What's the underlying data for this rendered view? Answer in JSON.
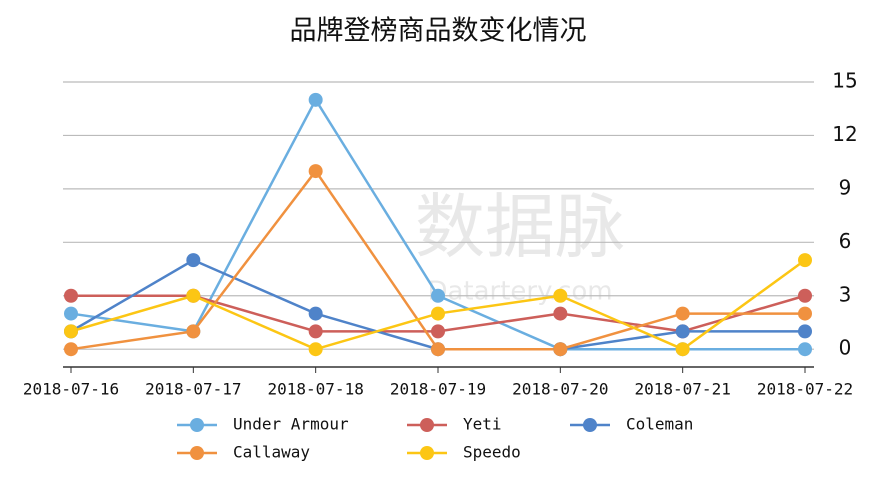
{
  "chart_data": {
    "type": "line",
    "title": "品牌登榜商品数变化情况",
    "watermark": [
      "数据脉",
      "Datartery.com"
    ],
    "categories": [
      "2018-07-16",
      "2018-07-17",
      "2018-07-18",
      "2018-07-19",
      "2018-07-20",
      "2018-07-21",
      "2018-07-22"
    ],
    "series": [
      {
        "name": "Under Armour",
        "color": "#6aaee0",
        "values": [
          2,
          1,
          14,
          3,
          0,
          0,
          0
        ]
      },
      {
        "name": "Yeti",
        "color": "#cd5f5a",
        "values": [
          3,
          3,
          1,
          1,
          2,
          1,
          3
        ]
      },
      {
        "name": "Coleman",
        "color": "#4f83c9",
        "values": [
          1,
          5,
          2,
          0,
          0,
          1,
          1
        ]
      },
      {
        "name": "Callaway",
        "color": "#f0913f",
        "values": [
          0,
          1,
          10,
          0,
          0,
          2,
          2
        ]
      },
      {
        "name": "Speedo",
        "color": "#fcc614",
        "values": [
          1,
          3,
          0,
          2,
          3,
          0,
          5
        ]
      }
    ],
    "ylim": [
      -1,
      15
    ],
    "yticks": [
      0,
      3,
      6,
      9,
      12,
      15
    ],
    "grid": true
  }
}
